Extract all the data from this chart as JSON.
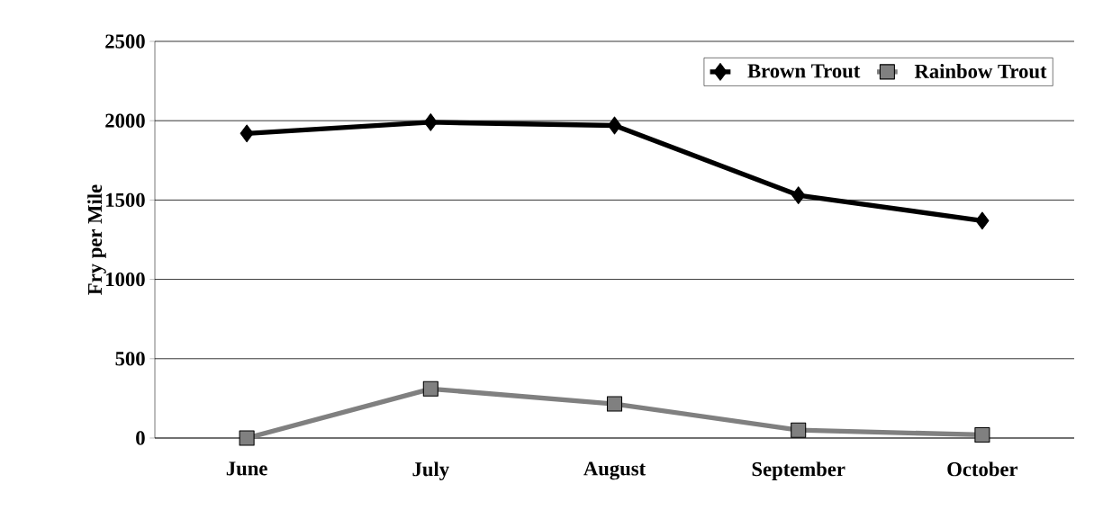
{
  "chart_data": {
    "type": "line",
    "ylabel": "Fry per Mile",
    "categories": [
      "June",
      "July",
      "August",
      "September",
      "October"
    ],
    "series": [
      {
        "name": "Brown Trout",
        "color": "#000000",
        "marker": "diamond",
        "values": [
          1920,
          1990,
          1970,
          1530,
          1370
        ]
      },
      {
        "name": "Rainbow Trout",
        "color": "#808080",
        "marker": "square",
        "values": [
          0,
          310,
          215,
          50,
          20
        ]
      }
    ],
    "ylim": [
      0,
      2500
    ],
    "yticks": [
      0,
      500,
      1000,
      1500,
      2000,
      2500
    ],
    "grid": "y",
    "legend": "top right",
    "line_style": "solid"
  }
}
